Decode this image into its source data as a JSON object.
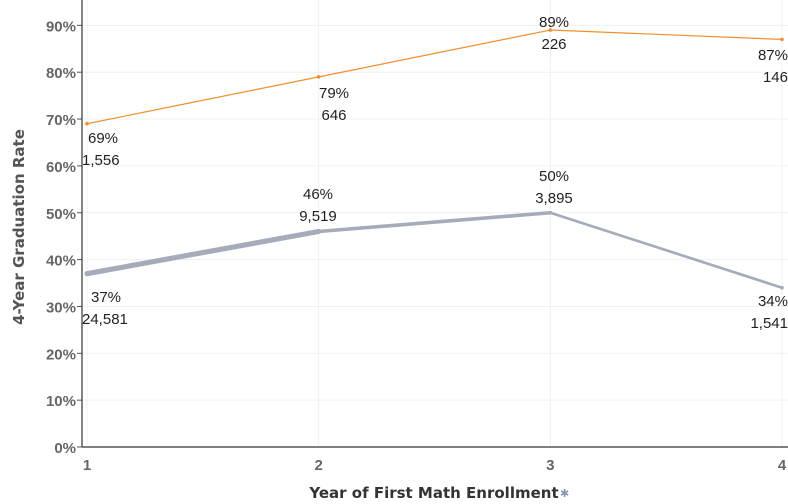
{
  "chart_data": {
    "type": "line",
    "title": "",
    "xlabel": "Year of First Math Enrollment",
    "ylabel": "4-Year Graduation Rate",
    "x": [
      1,
      2,
      3,
      4
    ],
    "x_tick_labels": [
      "1",
      "2",
      "3",
      "4"
    ],
    "ylim": [
      0,
      95
    ],
    "y_tick_labels": [
      "0%",
      "10%",
      "20%",
      "30%",
      "40%",
      "50%",
      "60%",
      "70%",
      "80%",
      "90%"
    ],
    "y_ticks": [
      0,
      10,
      20,
      30,
      40,
      50,
      60,
      70,
      80,
      90
    ],
    "grid": true,
    "legend": "none",
    "series": [
      {
        "color": "#f28e2b",
        "values": [
          69,
          79,
          89,
          87
        ],
        "counts": [
          1556,
          646,
          226,
          146
        ],
        "pct_labels": [
          "69%",
          "79%",
          "89%",
          "87%"
        ],
        "count_labels": [
          "1,556",
          "646",
          "226",
          "146"
        ]
      },
      {
        "color": "#a5acb9",
        "values": [
          37,
          46,
          50,
          34
        ],
        "counts": [
          24581,
          9519,
          3895,
          1541
        ],
        "pct_labels": [
          "37%",
          "46%",
          "50%",
          "34%"
        ],
        "count_labels": [
          "24,581",
          "9,519",
          "3,895",
          "1,541"
        ]
      }
    ],
    "x_axis_icon": "sort-icon"
  }
}
